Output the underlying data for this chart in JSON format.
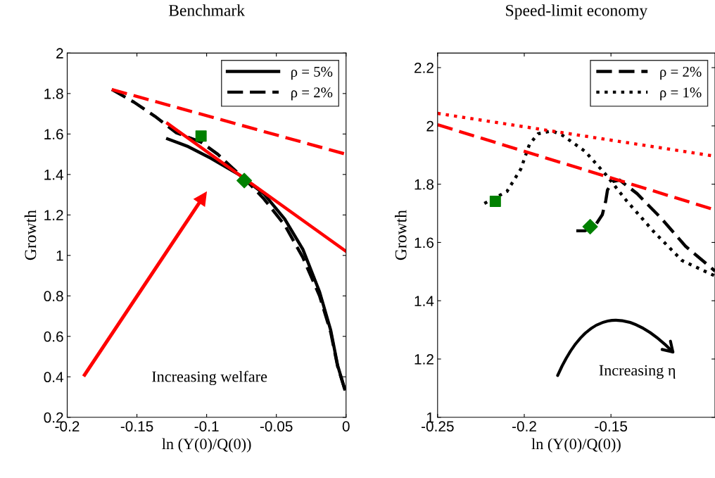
{
  "chart_data": [
    {
      "type": "line",
      "title": "Benchmark",
      "xlabel": "ln (Y(0)/Q(0))",
      "ylabel": "Growth",
      "xlim": [
        -0.2,
        0
      ],
      "ylim": [
        0.2,
        2
      ],
      "xticks": [
        -0.2,
        -0.15,
        -0.1,
        -0.05,
        0
      ],
      "yticks": [
        0.2,
        0.4,
        0.6,
        0.8,
        1,
        1.2,
        1.4,
        1.6,
        1.8,
        2
      ],
      "grid": false,
      "legend": "top right",
      "annotations": [
        "Increasing welfare"
      ],
      "series": [
        {
          "name": "ρ = 5%",
          "line_style": "solid",
          "color": "#000000",
          "x": [
            -0.128,
            -0.114,
            -0.097,
            -0.077,
            -0.059,
            -0.044,
            -0.031,
            -0.019,
            -0.011,
            -0.006,
            -0.001
          ],
          "values": [
            1.576,
            1.54,
            1.48,
            1.4,
            1.305,
            1.18,
            1.03,
            0.82,
            0.63,
            0.455,
            0.34
          ]
        },
        {
          "name": "ρ = 2%",
          "line_style": "dashed",
          "color": "#000000",
          "x": [
            -0.168,
            -0.152,
            -0.137,
            -0.122,
            -0.104,
            -0.092,
            -0.068,
            -0.059,
            -0.044,
            -0.031,
            -0.019,
            -0.011,
            -0.006,
            -0.001
          ],
          "values": [
            1.82,
            1.757,
            1.687,
            1.607,
            1.56,
            1.5,
            1.345,
            1.28,
            1.15,
            0.99,
            0.8,
            0.62,
            0.45,
            0.34
          ]
        },
        {
          "line_style": "solid",
          "color": "#ff0000",
          "x": [
            -0.128,
            0
          ],
          "values": [
            1.652,
            1.02
          ]
        },
        {
          "line_style": "dashed",
          "color": "#ff0000",
          "x": [
            -0.168,
            0
          ],
          "values": [
            1.82,
            1.5
          ]
        },
        {
          "type": "scatter",
          "marker": "square",
          "color": "#008000",
          "x": [
            -0.104
          ],
          "values": [
            1.59
          ]
        },
        {
          "type": "scatter",
          "marker": "diamond",
          "color": "#008000",
          "x": [
            -0.073
          ],
          "values": [
            1.37
          ]
        }
      ]
    },
    {
      "type": "line",
      "title": "Speed-limit economy",
      "xlabel": "ln (Y(0)/Q(0))",
      "ylabel": "Growth",
      "xlim": [
        -0.25,
        -0.09
      ],
      "ylim": [
        1,
        2.25
      ],
      "xticks": [
        -0.25,
        -0.2,
        -0.15
      ],
      "yticks": [
        1,
        1.2,
        1.4,
        1.6,
        1.8,
        2,
        2.2
      ],
      "grid": false,
      "legend": "top right",
      "annotations": [
        "Increasing η"
      ],
      "series": [
        {
          "name": "ρ = 2%",
          "line_style": "dashed",
          "color": "#000000",
          "x": [
            -0.17,
            -0.165,
            -0.159,
            -0.155,
            -0.153,
            -0.152,
            -0.149,
            -0.145,
            -0.135,
            -0.121,
            -0.107,
            -0.09
          ],
          "values": [
            1.64,
            1.64,
            1.659,
            1.695,
            1.743,
            1.78,
            1.809,
            1.814,
            1.768,
            1.683,
            1.587,
            1.502
          ]
        },
        {
          "name": "ρ = 1%",
          "line_style": "dotted",
          "color": "#000000",
          "x": [
            -0.223,
            -0.21,
            -0.202,
            -0.197,
            -0.192,
            -0.184,
            -0.178,
            -0.165,
            -0.153,
            -0.141,
            -0.125,
            -0.109,
            -0.09
          ],
          "values": [
            1.734,
            1.775,
            1.852,
            1.937,
            1.973,
            1.983,
            1.968,
            1.913,
            1.833,
            1.743,
            1.635,
            1.538,
            1.485
          ]
        },
        {
          "line_style": "dotted",
          "color": "#ff0000",
          "x": [
            -0.25,
            -0.09
          ],
          "values": [
            2.043,
            1.896
          ]
        },
        {
          "line_style": "dashed",
          "color": "#ff0000",
          "x": [
            -0.25,
            -0.09
          ],
          "values": [
            2.004,
            1.712
          ]
        },
        {
          "type": "scatter",
          "marker": "square",
          "color": "#008000",
          "x": [
            -0.2167
          ],
          "values": [
            1.741
          ]
        },
        {
          "type": "scatter",
          "marker": "diamond",
          "color": "#008000",
          "x": [
            -0.162
          ],
          "values": [
            1.654
          ]
        }
      ]
    }
  ]
}
